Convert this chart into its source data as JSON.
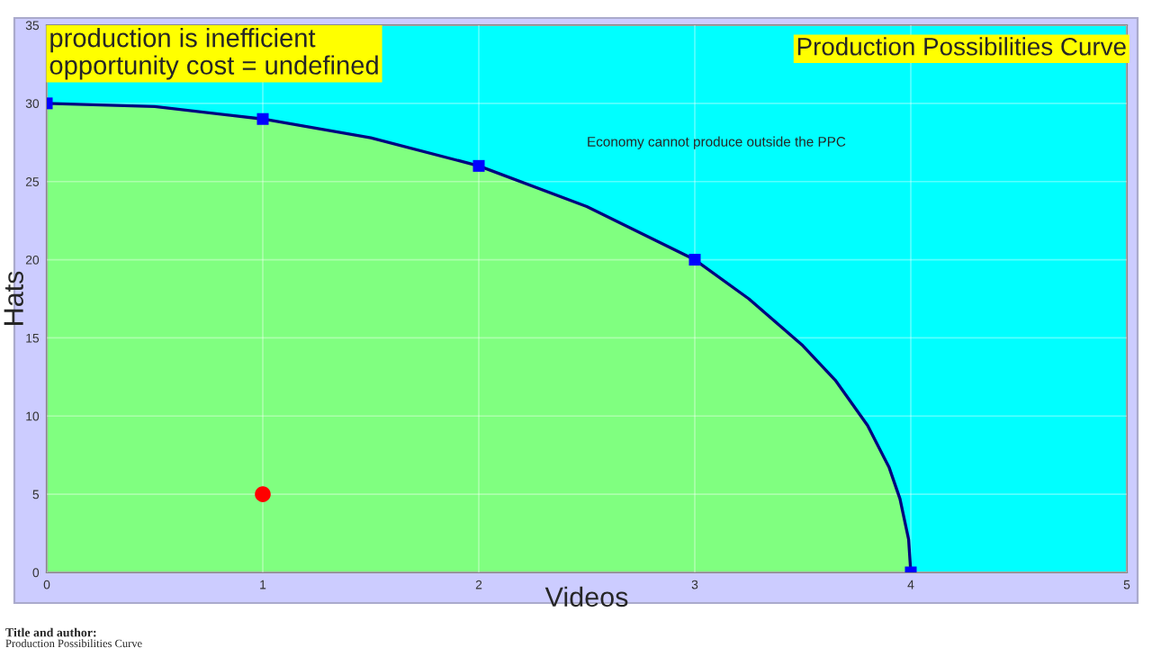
{
  "chart_data": {
    "type": "area",
    "title": "Production Possibilities Curve",
    "xlabel": "Videos",
    "ylabel": "Hats",
    "series": [
      {
        "type": "area",
        "color": "#80ff80",
        "x": [
          0,
          0.5,
          1,
          1.5,
          2,
          2.5,
          3,
          3.25,
          3.5,
          3.65,
          3.8,
          3.9,
          3.95,
          3.99,
          4
        ],
        "values": [
          30,
          29.8,
          29,
          27.8,
          26,
          23.4,
          20,
          17.5,
          14.5,
          12.3,
          9.4,
          6.7,
          4.7,
          2.1,
          0
        ]
      },
      {
        "type": "scatter",
        "color": "#0000ff",
        "marker": "square",
        "x": [
          0,
          1,
          2,
          3,
          4
        ],
        "values": [
          30,
          29,
          26,
          20,
          0
        ]
      },
      {
        "type": "scatter",
        "color": "#ff0000",
        "marker": "circle",
        "x": [
          1
        ],
        "values": [
          5
        ]
      }
    ],
    "xlim": [
      0,
      5
    ],
    "xticks": [
      0,
      1,
      2,
      3,
      4,
      5
    ],
    "ylim": [
      0,
      35
    ],
    "yticks": [
      0,
      5,
      10,
      15,
      20,
      25,
      30,
      35
    ],
    "grid": true,
    "bands": [
      {
        "axis": "x",
        "from": 0,
        "to": 5,
        "color": "#00ffff"
      }
    ],
    "annotations": [
      "production is inefficient\nopportunity cost = undefined",
      "Economy cannot produce outside the PPC",
      "Title and author:",
      "Production Possibilities Curve"
    ]
  }
}
